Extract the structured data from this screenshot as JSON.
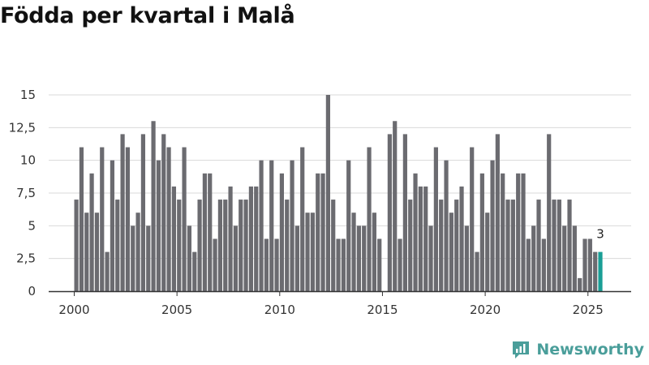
{
  "chart_data": {
    "type": "bar",
    "title": "Födda per kvartal i Malå",
    "xlabel": "",
    "ylabel": "",
    "start_year": 2000,
    "x_ticks": [
      "2000",
      "2005",
      "2010",
      "2015",
      "2020",
      "2025"
    ],
    "y_ticks": [
      "0",
      "2,5",
      "5",
      "7,5",
      "10",
      "12,5",
      "15"
    ],
    "ylim": [
      0,
      15
    ],
    "values": [
      7,
      11,
      6,
      9,
      6,
      11,
      3,
      10,
      7,
      12,
      11,
      5,
      6,
      12,
      5,
      13,
      10,
      12,
      11,
      8,
      7,
      11,
      5,
      3,
      7,
      9,
      9,
      4,
      7,
      7,
      8,
      5,
      7,
      7,
      8,
      8,
      10,
      4,
      10,
      4,
      9,
      7,
      10,
      5,
      11,
      6,
      6,
      9,
      9,
      15,
      7,
      4,
      4,
      10,
      6,
      5,
      5,
      11,
      6,
      4,
      0,
      12,
      13,
      4,
      12,
      7,
      9,
      8,
      8,
      5,
      11,
      7,
      10,
      6,
      7,
      8,
      5,
      11,
      3,
      9,
      6,
      10,
      12,
      9,
      7,
      7,
      9,
      9,
      4,
      5,
      7,
      4,
      12,
      7,
      7,
      5,
      7,
      5,
      1,
      4,
      4,
      3,
      3
    ],
    "highlight_index": 102,
    "highlight_label": "3",
    "colors": {
      "bar": "#6b6b70",
      "highlight": "#1a9e96",
      "grid": "#d9d9d9",
      "axis": "#333333"
    },
    "grid": true
  },
  "brand": {
    "name": "Newsworthy",
    "color": "#4a9e9a"
  }
}
